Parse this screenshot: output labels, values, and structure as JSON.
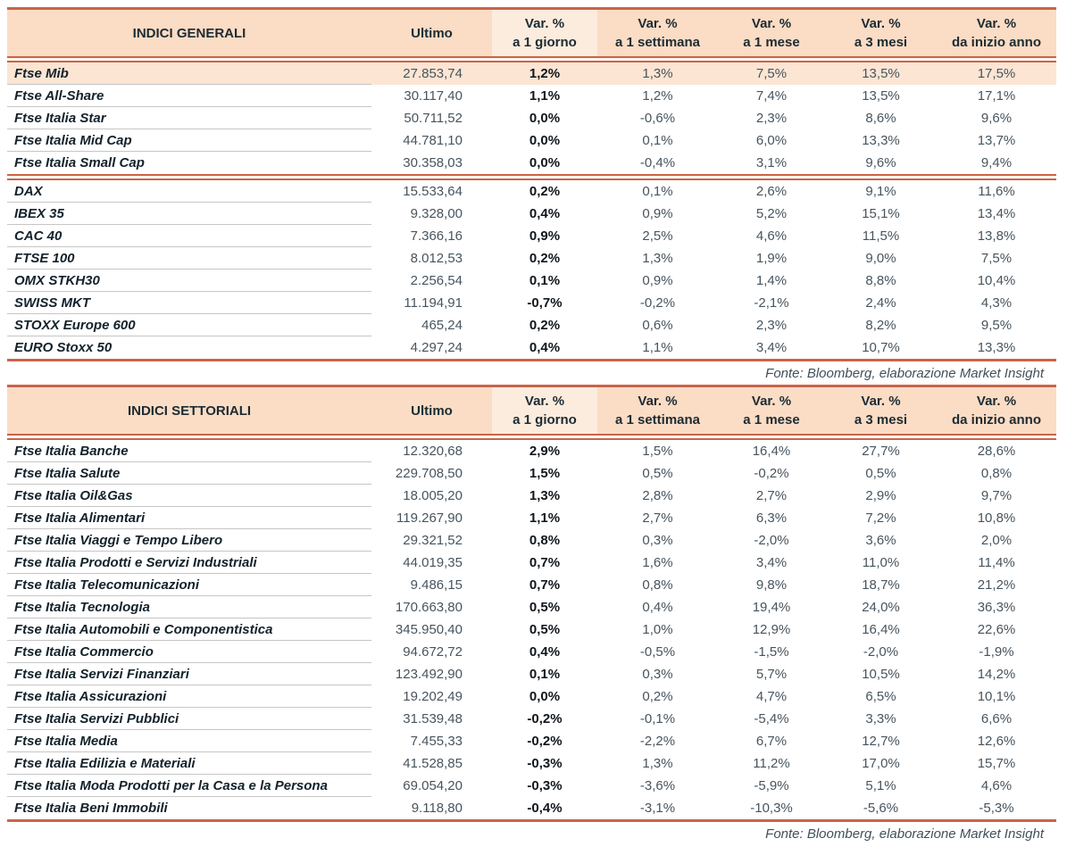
{
  "colors": {
    "accent_line": "#cb6349",
    "header_bg": "#fbdcc5",
    "header_day_col_bg": "#fcecdd",
    "highlight_row_bg": "#fce5d3"
  },
  "tables": [
    {
      "title": "INDICI GENERALI",
      "ultimo_label": "Ultimo",
      "var_columns": [
        {
          "line1": "Var. %",
          "line2": "a 1 giorno"
        },
        {
          "line1": "Var. %",
          "line2": "a 1 settimana"
        },
        {
          "line1": "Var. %",
          "line2": "a 1 mese"
        },
        {
          "line1": "Var. %",
          "line2": "a 3 mesi"
        },
        {
          "line1": "Var. %",
          "line2": "da inizio anno"
        }
      ],
      "source": "Fonte: Bloomberg, elaborazione Market Insight",
      "groups": [
        {
          "rows": [
            {
              "label": "Ftse Mib",
              "ultimo": "27.853,74",
              "vars": [
                "1,2%",
                "1,3%",
                "7,5%",
                "13,5%",
                "17,5%"
              ],
              "highlight": true
            },
            {
              "label": "Ftse All-Share",
              "ultimo": "30.117,40",
              "vars": [
                "1,1%",
                "1,2%",
                "7,4%",
                "13,5%",
                "17,1%"
              ]
            },
            {
              "label": "Ftse Italia Star",
              "ultimo": "50.711,52",
              "vars": [
                "0,0%",
                "-0,6%",
                "2,3%",
                "8,6%",
                "9,6%"
              ]
            },
            {
              "label": "Ftse Italia Mid Cap",
              "ultimo": "44.781,10",
              "vars": [
                "0,0%",
                "0,1%",
                "6,0%",
                "13,3%",
                "13,7%"
              ]
            },
            {
              "label": "Ftse Italia Small Cap",
              "ultimo": "30.358,03",
              "vars": [
                "0,0%",
                "-0,4%",
                "3,1%",
                "9,6%",
                "9,4%"
              ]
            }
          ]
        },
        {
          "rows": [
            {
              "label": "DAX",
              "ultimo": "15.533,64",
              "vars": [
                "0,2%",
                "0,1%",
                "2,6%",
                "9,1%",
                "11,6%"
              ]
            },
            {
              "label": "IBEX 35",
              "ultimo": "9.328,00",
              "vars": [
                "0,4%",
                "0,9%",
                "5,2%",
                "15,1%",
                "13,4%"
              ]
            },
            {
              "label": "CAC 40",
              "ultimo": "7.366,16",
              "vars": [
                "0,9%",
                "2,5%",
                "4,6%",
                "11,5%",
                "13,8%"
              ]
            },
            {
              "label": "FTSE 100",
              "ultimo": "8.012,53",
              "vars": [
                "0,2%",
                "1,3%",
                "1,9%",
                "9,0%",
                "7,5%"
              ]
            },
            {
              "label": "OMX STKH30",
              "ultimo": "2.256,54",
              "vars": [
                "0,1%",
                "0,9%",
                "1,4%",
                "8,8%",
                "10,4%"
              ]
            },
            {
              "label": "SWISS MKT",
              "ultimo": "11.194,91",
              "vars": [
                "-0,7%",
                "-0,2%",
                "-2,1%",
                "2,4%",
                "4,3%"
              ]
            },
            {
              "label": "STOXX Europe 600",
              "ultimo": "465,24",
              "vars": [
                "0,2%",
                "0,6%",
                "2,3%",
                "8,2%",
                "9,5%"
              ]
            },
            {
              "label": "EURO Stoxx 50",
              "ultimo": "4.297,24",
              "vars": [
                "0,4%",
                "1,1%",
                "3,4%",
                "10,7%",
                "13,3%"
              ]
            }
          ]
        }
      ]
    },
    {
      "title": "INDICI SETTORIALI",
      "ultimo_label": "Ultimo",
      "var_columns": [
        {
          "line1": "Var. %",
          "line2": "a 1 giorno"
        },
        {
          "line1": "Var. %",
          "line2": "a 1 settimana"
        },
        {
          "line1": "Var. %",
          "line2": "a 1 mese"
        },
        {
          "line1": "Var. %",
          "line2": "a 3 mesi"
        },
        {
          "line1": "Var. %",
          "line2": "da inizio anno"
        }
      ],
      "source": "Fonte: Bloomberg, elaborazione Market Insight",
      "groups": [
        {
          "rows": [
            {
              "label": "Ftse Italia Banche",
              "ultimo": "12.320,68",
              "vars": [
                "2,9%",
                "1,5%",
                "16,4%",
                "27,7%",
                "28,6%"
              ]
            },
            {
              "label": "Ftse Italia Salute",
              "ultimo": "229.708,50",
              "vars": [
                "1,5%",
                "0,5%",
                "-0,2%",
                "0,5%",
                "0,8%"
              ]
            },
            {
              "label": "Ftse Italia Oil&Gas",
              "ultimo": "18.005,20",
              "vars": [
                "1,3%",
                "2,8%",
                "2,7%",
                "2,9%",
                "9,7%"
              ]
            },
            {
              "label": "Ftse Italia Alimentari",
              "ultimo": "119.267,90",
              "vars": [
                "1,1%",
                "2,7%",
                "6,3%",
                "7,2%",
                "10,8%"
              ]
            },
            {
              "label": "Ftse Italia Viaggi e Tempo Libero",
              "ultimo": "29.321,52",
              "vars": [
                "0,8%",
                "0,3%",
                "-2,0%",
                "3,6%",
                "2,0%"
              ]
            },
            {
              "label": "Ftse Italia Prodotti e Servizi Industriali",
              "ultimo": "44.019,35",
              "vars": [
                "0,7%",
                "1,6%",
                "3,4%",
                "11,0%",
                "11,4%"
              ]
            },
            {
              "label": "Ftse Italia Telecomunicazioni",
              "ultimo": "9.486,15",
              "vars": [
                "0,7%",
                "0,8%",
                "9,8%",
                "18,7%",
                "21,2%"
              ]
            },
            {
              "label": "Ftse Italia Tecnologia",
              "ultimo": "170.663,80",
              "vars": [
                "0,5%",
                "0,4%",
                "19,4%",
                "24,0%",
                "36,3%"
              ]
            },
            {
              "label": "Ftse Italia Automobili e Componentistica",
              "ultimo": "345.950,40",
              "vars": [
                "0,5%",
                "1,0%",
                "12,9%",
                "16,4%",
                "22,6%"
              ]
            },
            {
              "label": "Ftse Italia Commercio",
              "ultimo": "94.672,72",
              "vars": [
                "0,4%",
                "-0,5%",
                "-1,5%",
                "-2,0%",
                "-1,9%"
              ]
            },
            {
              "label": "Ftse Italia Servizi Finanziari",
              "ultimo": "123.492,90",
              "vars": [
                "0,1%",
                "0,3%",
                "5,7%",
                "10,5%",
                "14,2%"
              ]
            },
            {
              "label": "Ftse Italia Assicurazioni",
              "ultimo": "19.202,49",
              "vars": [
                "0,0%",
                "0,2%",
                "4,7%",
                "6,5%",
                "10,1%"
              ]
            },
            {
              "label": "Ftse Italia Servizi Pubblici",
              "ultimo": "31.539,48",
              "vars": [
                "-0,2%",
                "-0,1%",
                "-5,4%",
                "3,3%",
                "6,6%"
              ]
            },
            {
              "label": "Ftse Italia Media",
              "ultimo": "7.455,33",
              "vars": [
                "-0,2%",
                "-2,2%",
                "6,7%",
                "12,7%",
                "12,6%"
              ]
            },
            {
              "label": "Ftse Italia Edilizia e Materiali",
              "ultimo": "41.528,85",
              "vars": [
                "-0,3%",
                "1,3%",
                "11,2%",
                "17,0%",
                "15,7%"
              ]
            },
            {
              "label": "Ftse Italia Moda Prodotti per la Casa e la Persona",
              "ultimo": "69.054,20",
              "vars": [
                "-0,3%",
                "-3,6%",
                "-5,9%",
                "5,1%",
                "4,6%"
              ]
            },
            {
              "label": "Ftse Italia Beni Immobili",
              "ultimo": "9.118,80",
              "vars": [
                "-0,4%",
                "-3,1%",
                "-10,3%",
                "-5,6%",
                "-5,3%"
              ]
            }
          ]
        }
      ]
    }
  ]
}
